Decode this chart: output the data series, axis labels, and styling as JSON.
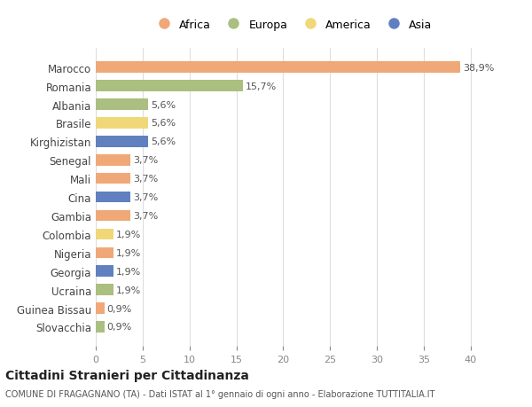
{
  "countries": [
    "Marocco",
    "Romania",
    "Albania",
    "Brasile",
    "Kirghizistan",
    "Senegal",
    "Mali",
    "Cina",
    "Gambia",
    "Colombia",
    "Nigeria",
    "Georgia",
    "Ucraina",
    "Guinea Bissau",
    "Slovacchia"
  ],
  "values": [
    38.9,
    15.7,
    5.6,
    5.6,
    5.6,
    3.7,
    3.7,
    3.7,
    3.7,
    1.9,
    1.9,
    1.9,
    1.9,
    0.9,
    0.9
  ],
  "labels": [
    "38,9%",
    "15,7%",
    "5,6%",
    "5,6%",
    "5,6%",
    "3,7%",
    "3,7%",
    "3,7%",
    "3,7%",
    "1,9%",
    "1,9%",
    "1,9%",
    "1,9%",
    "0,9%",
    "0,9%"
  ],
  "continents": [
    "Africa",
    "Europa",
    "Europa",
    "America",
    "Asia",
    "Africa",
    "Africa",
    "Asia",
    "Africa",
    "America",
    "Africa",
    "Asia",
    "Europa",
    "Africa",
    "Europa"
  ],
  "colors": {
    "Africa": "#F0A878",
    "Europa": "#AABF80",
    "America": "#F0D878",
    "Asia": "#6080C0"
  },
  "legend_order": [
    "Africa",
    "Europa",
    "America",
    "Asia"
  ],
  "title": "Cittadini Stranieri per Cittadinanza",
  "subtitle": "COMUNE DI FRAGAGNANO (TA) - Dati ISTAT al 1° gennaio di ogni anno - Elaborazione TUTTITALIA.IT",
  "xlim": [
    0,
    42
  ],
  "xticks": [
    0,
    5,
    10,
    15,
    20,
    25,
    30,
    35,
    40
  ],
  "bg_color": "#ffffff",
  "grid_color": "#dddddd"
}
